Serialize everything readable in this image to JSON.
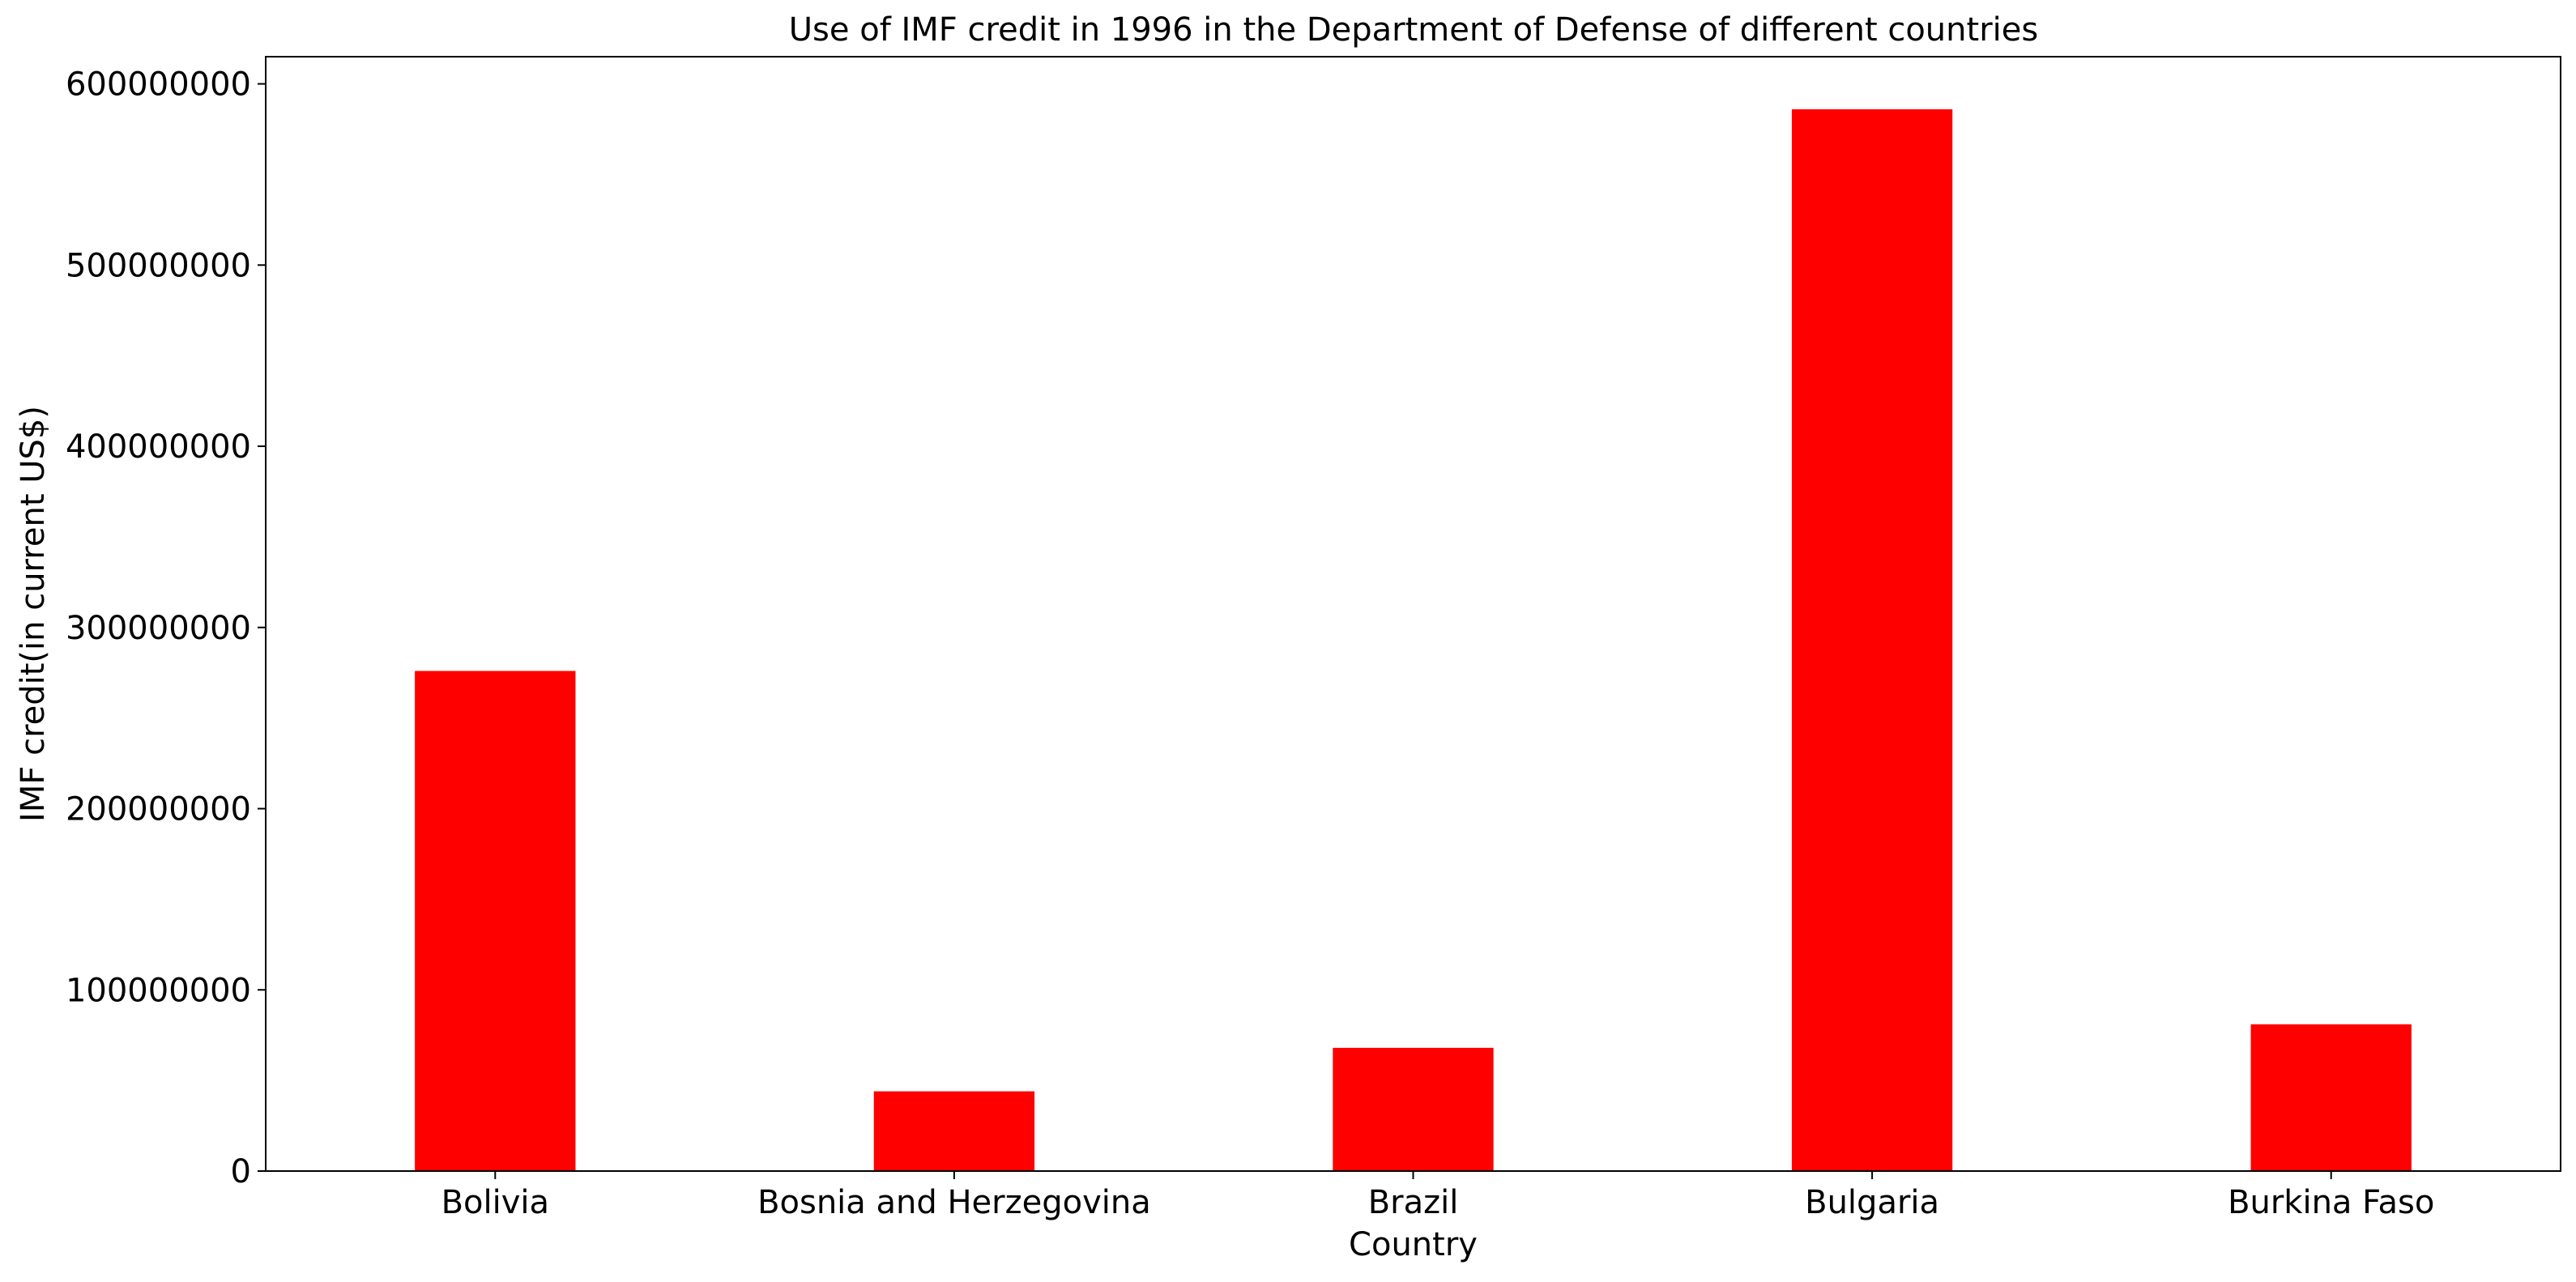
{
  "chart_data": {
    "type": "bar",
    "title": "Use of IMF credit in 1996 in the Department of Defense of different countries",
    "xlabel": "Country",
    "ylabel": "IMF credit(in current US$)",
    "categories": [
      "Bolivia",
      "Bosnia and Herzegovina",
      "Brazil",
      "Bulgaria",
      "Burkina Faso"
    ],
    "values": [
      276000000,
      44000000,
      68000000,
      586000000,
      81000000
    ],
    "ylim": [
      0,
      615000000
    ],
    "yticks": [
      0,
      100000000,
      200000000,
      300000000,
      400000000,
      500000000,
      600000000
    ],
    "ytick_labels": [
      "0",
      "100000000",
      "200000000",
      "300000000",
      "400000000",
      "500000000",
      "600000000"
    ],
    "bar_color": "#ff0000",
    "grid": false,
    "legend": "none"
  }
}
